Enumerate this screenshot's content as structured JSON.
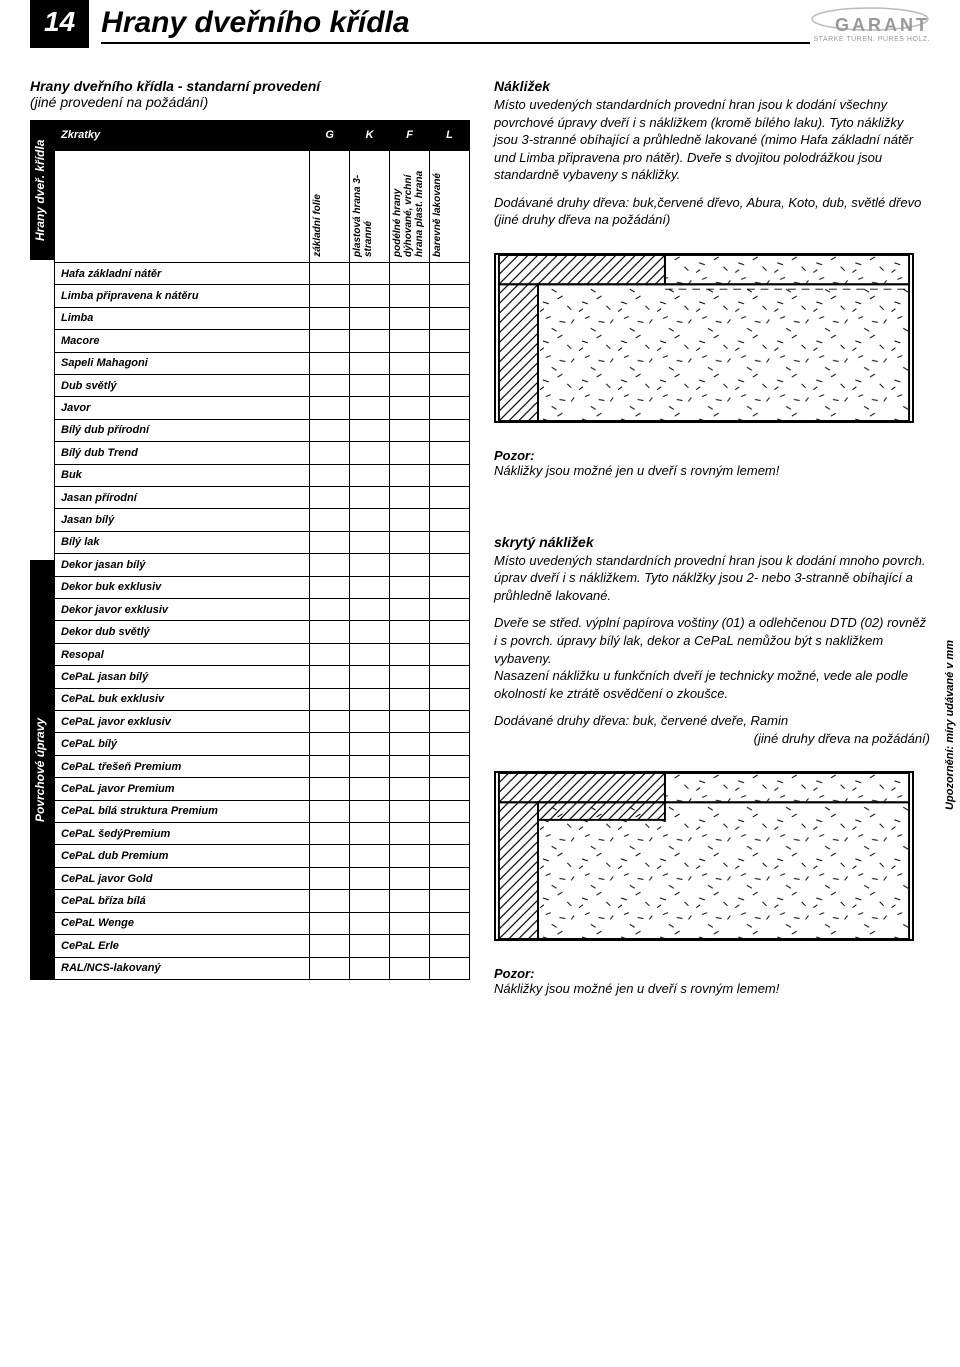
{
  "page_number": "14",
  "page_title": "Hrany dveřního křídla",
  "logo": {
    "name": "GARANT",
    "tagline": "STARKE TÜREN. PURES HOLZ."
  },
  "intro": {
    "title": "Hrany dveřního křídla - standarní provedení",
    "subtitle": "(jiné provedení na požádání)"
  },
  "vtabs": {
    "top": "Hrany dveř. křídla",
    "bottom": "Povrchové úpravy"
  },
  "table": {
    "header": {
      "label": "Zkratky",
      "cols": [
        "G",
        "K",
        "F",
        "L"
      ]
    },
    "subheader": [
      "základní folie",
      "plastová hrana 3-stranné",
      "podélné hrany dýhované, vrchní hrana plast. hrana",
      "barevně lakované"
    ],
    "rows": [
      "Hafa základní nátěr",
      "Limba připravena k nátěru",
      "Limba",
      "Macore",
      "Sapeli Mahagoni",
      "Dub světlý",
      "Javor",
      "Bílý dub přírodní",
      "Bílý dub  Trend",
      "Buk",
      "Jasan přírodní",
      "Jasan bílý",
      "Bílý lak",
      "Dekor jasan bílý",
      "Dekor buk exklusiv",
      "Dekor javor exklusiv",
      "Dekor dub světlý",
      "Resopal",
      "CePaL jasan bílý",
      "CePaL buk exklusiv",
      "CePaL javor exklusiv",
      "CePaL bílý",
      "CePaL třešeň Premium",
      "CePaL javor Premium",
      "CePaL bílá struktura Premium",
      "CePaL šedýPremium",
      "CePaL dub Premium",
      "CePaL javor Gold",
      "CePaL bříza bílá",
      "CePaL Wenge",
      "CePaL Erle",
      "RAL/NCS-lakovaný"
    ]
  },
  "right": {
    "sec1_title": "Nákližek",
    "sec1_p1": "Místo uvedených standardních provední hran jsou k dodání všechny povrchové úpravy dveří i s nákližkem (kromě bílého laku). Tyto nákližky jsou 3-stranné obíhající a průhledně lakované (mimo Hafa základní nátěr und Limba připravena pro nátěr). Dveře s dvojitou polodrážkou jsou standardně vybaveny s nákližky.",
    "sec1_p2": "Dodávané druhy dřeva: buk,červené dřevo, Abura, Koto, dub, světlé dřevo (jiné druhy dřeva na požádání)",
    "warn1_label": "Pozor:",
    "warn1_text": "Nákližky jsou možné jen u dveří s rovným lemem!",
    "sec2_title": "skrytý nákližek",
    "sec2_p1": "Místo uvedených standardních provední hran jsou k dodání mnoho povrch. úprav dveří i s nákližkem. Tyto náklžky jsou 2- nebo 3-stranně obíhající a průhledně lakované.",
    "sec2_p2": "Dveře se střed. výplní papírova voštiny (01) a odlehčenou DTD (02) rovněž i s povrch. úpravy bílý lak, dekor a CePaL nemůžou být s nakližkem vybaveny.",
    "sec2_p3": "Nasazení nákližku u funkčních dveří je technicky možné, vede ale podle okolností ke ztrátě osvědčení o zkoušce.",
    "sec2_p4": "Dodávané druhy dřeva: buk, červené dveře, Ramin",
    "sec2_p4b": "(jiné druhy dřeva na požádání)",
    "warn2_label": "Pozor:",
    "warn2_text": "Nákližky jsou možné jen u dveří s rovným lemem!"
  },
  "side_note": "Upozornění: míry udávané v mm",
  "diagram": {
    "stroke": "#000000",
    "fill_hatch": "diagonal",
    "fill_scatter": "random-dashes"
  }
}
